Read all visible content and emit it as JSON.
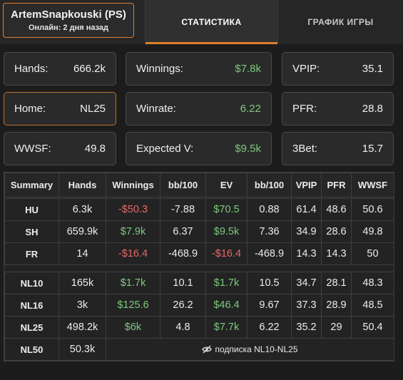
{
  "player": {
    "name": "ArtemSnapkouski (PS)",
    "online": "Онлайн: 2 дня назад"
  },
  "tabs": [
    {
      "label": "СТАТИСТИКА"
    },
    {
      "label": "ГРАФИК ИГРЫ"
    }
  ],
  "cards": {
    "hands": {
      "label": "Hands:",
      "value": "666.2k"
    },
    "winnings": {
      "label": "Winnings:",
      "value": "$7.8k"
    },
    "vpip": {
      "label": "VPIP:",
      "value": "35.1"
    },
    "home": {
      "label": "Home:",
      "value": "NL25"
    },
    "winrate": {
      "label": "Winrate:",
      "value": "6.22"
    },
    "pfr": {
      "label": "PFR:",
      "value": "28.8"
    },
    "wwsf": {
      "label": "WWSF:",
      "value": "49.8"
    },
    "expected": {
      "label": "Expected V:",
      "value": "$9.5k"
    },
    "threebet": {
      "label": "3Bet:",
      "value": "15.7"
    }
  },
  "table": {
    "headers": [
      "Summary",
      "Hands",
      "Winnings",
      "bb/100",
      "EV",
      "bb/100",
      "VPIP",
      "PFR",
      "WWSF"
    ],
    "by_table_size": [
      [
        "HU",
        "6.3k",
        "-$50.3",
        "-7.88",
        "$70.5",
        "0.88",
        "61.4",
        "48.6",
        "50.6"
      ],
      [
        "SH",
        "659.9k",
        "$7.9k",
        "6.37",
        "$9.5k",
        "7.36",
        "34.9",
        "28.6",
        "49.8"
      ],
      [
        "FR",
        "14",
        "-$16.4",
        "-468.9",
        "-$16.4",
        "-468.9",
        "14.3",
        "14.3",
        "50"
      ]
    ],
    "by_limit": [
      [
        "NL10",
        "165k",
        "$1.7k",
        "10.1",
        "$1.7k",
        "10.5",
        "34.7",
        "28.1",
        "48.3"
      ],
      [
        "NL16",
        "3k",
        "$125.6",
        "26.2",
        "$46.4",
        "9.67",
        "37.3",
        "28.9",
        "48.5"
      ],
      [
        "NL25",
        "498.2k",
        "$6k",
        "4.8",
        "$7.7k",
        "6.22",
        "35.2",
        "29",
        "50.4"
      ]
    ],
    "locked_row": {
      "limit": "NL50",
      "hands": "50.3k",
      "notice": "подписка NL10-NL25"
    }
  },
  "colors": {
    "accent": "#e07e2c",
    "positive": "#7ec87e",
    "negative": "#e36a6a"
  }
}
